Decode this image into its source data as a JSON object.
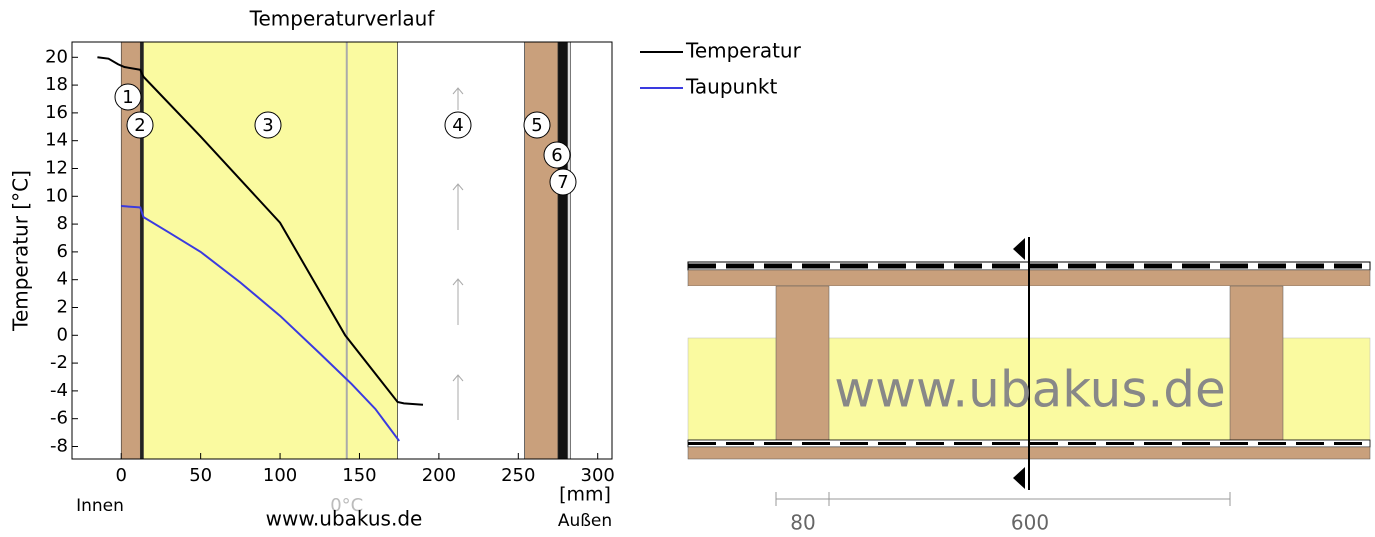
{
  "chart_data": {
    "type": "line",
    "title": "Temperaturverlauf",
    "y_label": "Temperatur [°C]",
    "x_unit": "[mm]",
    "inside_label": "Innen",
    "outside_label": "Außen",
    "watermark": "www.ubakus.de",
    "zero_label": "0°C",
    "zero_x": 142,
    "xlim": [
      -31,
      309
    ],
    "xticks": [
      0,
      50,
      100,
      150,
      200,
      250,
      300
    ],
    "ylim": [
      -8.9,
      21.1
    ],
    "yticks": [
      -8,
      -6,
      -4,
      -2,
      0,
      2,
      4,
      6,
      8,
      10,
      12,
      14,
      16,
      18,
      20
    ],
    "layers": [
      {
        "label": "1",
        "xlim": [
          0,
          12
        ],
        "color": "#c9a07c"
      },
      {
        "label": "2",
        "xlim": [
          12,
          14
        ],
        "color": "#222222"
      },
      {
        "label": "3",
        "xlim": [
          14,
          174
        ],
        "color": "#fafaa0"
      },
      {
        "label": "4",
        "xlim": [
          174,
          254
        ],
        "color": "#ffffff"
      },
      {
        "label": "5",
        "xlim": [
          254,
          275
        ],
        "color": "#c9a07c"
      },
      {
        "label": "6",
        "xlim": [
          275,
          281
        ],
        "color": "#111111"
      },
      {
        "label": "7",
        "xlim": [
          281,
          283
        ],
        "color": "#dddddd"
      }
    ],
    "series": [
      {
        "name": "Temperatur",
        "color": "#000000",
        "x": [
          -15,
          -8,
          -2,
          2,
          12,
          14,
          50,
          100,
          141,
          174,
          178,
          190
        ],
        "values": [
          20,
          19.9,
          19.5,
          19.3,
          19.1,
          18.6,
          14.3,
          8.1,
          0,
          -4.8,
          -4.9,
          -5.0
        ]
      },
      {
        "name": "Taupunkt",
        "color": "#3a3ae0",
        "x": [
          0,
          12,
          14,
          30,
          50,
          75,
          100,
          125,
          145,
          160,
          175
        ],
        "values": [
          9.3,
          9.2,
          8.5,
          7.4,
          6.0,
          3.8,
          1.4,
          -1.3,
          -3.5,
          -5.3,
          -7.6
        ]
      }
    ]
  },
  "diagram": {
    "watermark": "www.ubakus.de",
    "dimensions": [
      80,
      600
    ]
  }
}
